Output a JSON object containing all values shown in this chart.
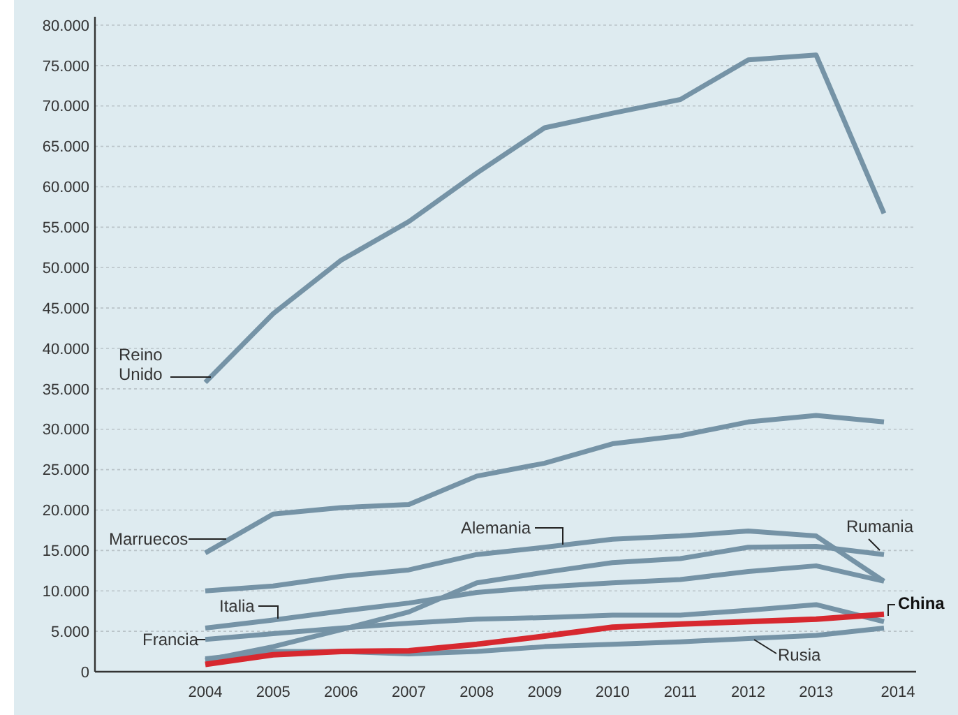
{
  "chart_data": {
    "type": "line",
    "categories": [
      "2004",
      "2005",
      "2006",
      "2007",
      "2008",
      "2009",
      "2010",
      "2011",
      "2012",
      "2013",
      "2014"
    ],
    "ylim": [
      0,
      80000
    ],
    "yticks": [
      {
        "value": 0,
        "label": "0"
      },
      {
        "value": 5000,
        "label": "5.000"
      },
      {
        "value": 10000,
        "label": "10.000"
      },
      {
        "value": 15000,
        "label": "15.000"
      },
      {
        "value": 20000,
        "label": "20.000"
      },
      {
        "value": 25000,
        "label": "25.000"
      },
      {
        "value": 30000,
        "label": "30.000"
      },
      {
        "value": 35000,
        "label": "35.000"
      },
      {
        "value": 40000,
        "label": "40.000"
      },
      {
        "value": 45000,
        "label": "45.000"
      },
      {
        "value": 50000,
        "label": "50.000"
      },
      {
        "value": 55000,
        "label": "55.000"
      },
      {
        "value": 60000,
        "label": "60.000"
      },
      {
        "value": 65000,
        "label": "65.000"
      },
      {
        "value": 70000,
        "label": "70.000"
      },
      {
        "value": 75000,
        "label": "75.000"
      },
      {
        "value": 80000,
        "label": "80.000"
      }
    ],
    "grid": "y",
    "marker": "none",
    "line_style": "solid",
    "series": [
      {
        "name": "Reino Unido",
        "color": "#7593a6",
        "values": [
          35800,
          44300,
          50900,
          55700,
          61700,
          67300,
          69100,
          70800,
          75700,
          76300,
          56700
        ]
      },
      {
        "name": "Marruecos",
        "color": "#7593a6",
        "values": [
          14700,
          19500,
          20300,
          20700,
          24200,
          25800,
          28200,
          29200,
          30900,
          31700,
          30900
        ]
      },
      {
        "name": "Alemania",
        "color": "#7593a6",
        "values": [
          10000,
          10600,
          11800,
          12600,
          14500,
          15400,
          16400,
          16800,
          17400,
          16800,
          11200
        ]
      },
      {
        "name": "Rumania",
        "color": "#7593a6",
        "values": [
          1400,
          3100,
          5200,
          7400,
          11000,
          12300,
          13500,
          14000,
          15400,
          15500,
          14500
        ]
      },
      {
        "name": "Italia",
        "color": "#7593a6",
        "values": [
          5400,
          6400,
          7500,
          8500,
          9800,
          10500,
          11000,
          11400,
          12400,
          13100,
          11200
        ]
      },
      {
        "name": "Francia",
        "color": "#7593a6",
        "values": [
          4000,
          4700,
          5400,
          6000,
          6500,
          6700,
          7000,
          7000,
          7600,
          8300,
          6200
        ]
      },
      {
        "name": "Rusia",
        "color": "#7593a6",
        "values": [
          1600,
          2500,
          2500,
          2200,
          2500,
          3100,
          3400,
          3700,
          4100,
          4500,
          5400
        ]
      },
      {
        "name": "China",
        "color": "#d7282f",
        "values": [
          900,
          2100,
          2500,
          2600,
          3400,
          4400,
          5500,
          5900,
          6200,
          6500,
          7100
        ]
      }
    ]
  }
}
